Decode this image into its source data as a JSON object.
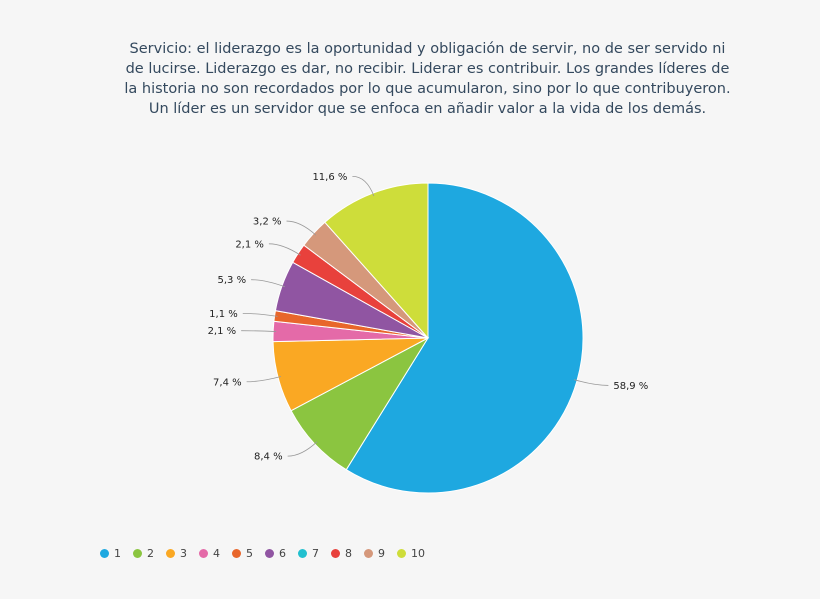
{
  "chart_data": {
    "type": "pie",
    "title": "Servicio: el liderazgo es la oportunidad y obligación de servir, no de ser servido ni de lucirse. Liderazgo es dar, no recibir. Liderar es contribuir. Los grandes líderes de la historia no son recordados por lo que acumularon, sino por lo que contribuyeron. Un líder es un servidor que se enfoca en añadir valor a la vida de los demás.",
    "categories": [
      "1",
      "2",
      "3",
      "4",
      "5",
      "6",
      "7",
      "8",
      "9",
      "10"
    ],
    "values": [
      58.9,
      8.4,
      7.4,
      2.1,
      1.1,
      5.3,
      0,
      2.1,
      3.2,
      11.6
    ],
    "labels": [
      "58,9 %",
      "8,4 %",
      "7,4 %",
      "2,1 %",
      "1,1 %",
      "5,3 %",
      "",
      "2,1 %",
      "3,2 %",
      "11,6 %"
    ],
    "colors": [
      "#1ea8e0",
      "#8bc540",
      "#faa823",
      "#e46aa8",
      "#e8662b",
      "#9055a2",
      "#22c0cf",
      "#e8413c",
      "#d5987b",
      "#cedd3a"
    ],
    "legend_position": "bottom-left"
  }
}
